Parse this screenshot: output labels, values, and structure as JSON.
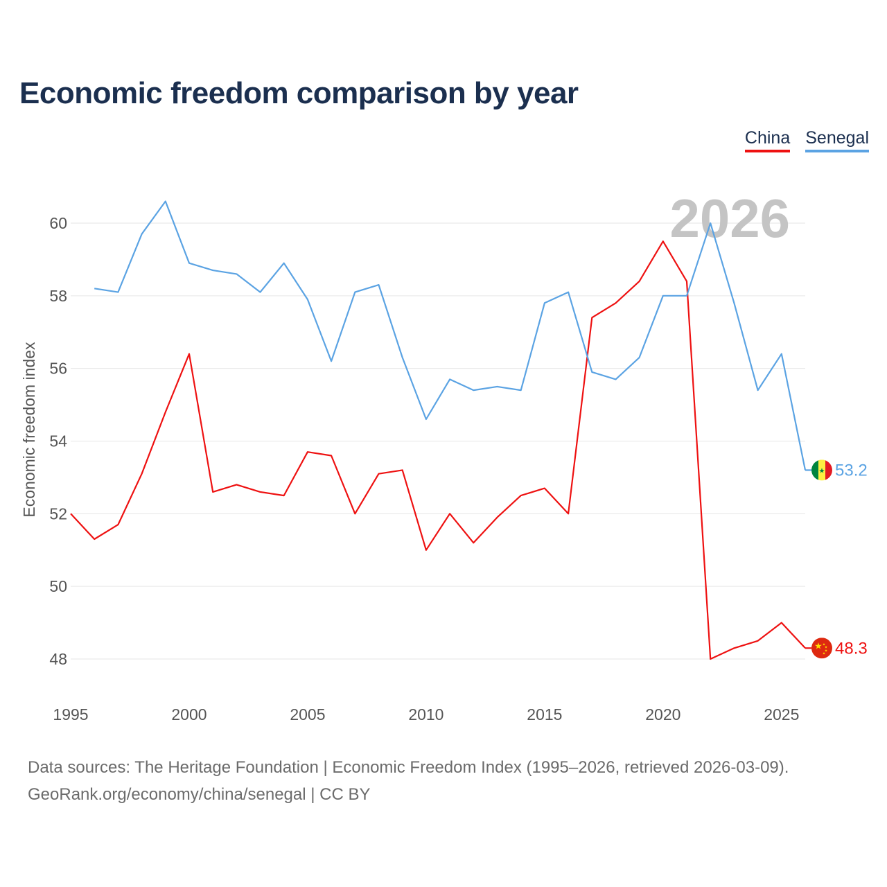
{
  "chart_data": {
    "type": "line",
    "title": "Economic freedom comparison by year",
    "ylabel": "Economic freedom index",
    "xlabel": "",
    "xlim": [
      1995,
      2026
    ],
    "ylim": [
      47,
      61.5
    ],
    "x_ticks": [
      1995,
      2000,
      2005,
      2010,
      2015,
      2020,
      2025
    ],
    "y_ticks": [
      48,
      50,
      52,
      54,
      56,
      58,
      60
    ],
    "year_highlight": "2026",
    "series": [
      {
        "name": "China",
        "color": "#ee1111",
        "end_value": "48.3",
        "flag": "china-flag",
        "points": [
          [
            1995,
            52.0
          ],
          [
            1996,
            51.3
          ],
          [
            1997,
            51.7
          ],
          [
            1998,
            53.1
          ],
          [
            1999,
            54.8
          ],
          [
            2000,
            56.4
          ],
          [
            2001,
            52.6
          ],
          [
            2002,
            52.8
          ],
          [
            2003,
            52.6
          ],
          [
            2004,
            52.5
          ],
          [
            2005,
            53.7
          ],
          [
            2006,
            53.6
          ],
          [
            2007,
            52.0
          ],
          [
            2008,
            53.1
          ],
          [
            2009,
            53.2
          ],
          [
            2010,
            51.0
          ],
          [
            2011,
            52.0
          ],
          [
            2012,
            51.2
          ],
          [
            2013,
            51.9
          ],
          [
            2014,
            52.5
          ],
          [
            2015,
            52.7
          ],
          [
            2016,
            52.0
          ],
          [
            2017,
            57.4
          ],
          [
            2018,
            57.8
          ],
          [
            2019,
            58.4
          ],
          [
            2020,
            59.5
          ],
          [
            2021,
            58.4
          ],
          [
            2022,
            48.0
          ],
          [
            2023,
            48.3
          ],
          [
            2024,
            48.5
          ],
          [
            2025,
            49.0
          ],
          [
            2026,
            48.3
          ]
        ]
      },
      {
        "name": "Senegal",
        "color": "#5ba3e3",
        "end_value": "53.2",
        "flag": "senegal-flag",
        "points": [
          [
            1996,
            58.2
          ],
          [
            1997,
            58.1
          ],
          [
            1998,
            59.7
          ],
          [
            1999,
            60.6
          ],
          [
            2000,
            58.9
          ],
          [
            2001,
            58.7
          ],
          [
            2002,
            58.6
          ],
          [
            2003,
            58.1
          ],
          [
            2004,
            58.9
          ],
          [
            2005,
            57.9
          ],
          [
            2006,
            56.2
          ],
          [
            2007,
            58.1
          ],
          [
            2008,
            58.3
          ],
          [
            2009,
            56.3
          ],
          [
            2010,
            54.6
          ],
          [
            2011,
            55.7
          ],
          [
            2012,
            55.4
          ],
          [
            2013,
            55.5
          ],
          [
            2014,
            55.4
          ],
          [
            2015,
            57.8
          ],
          [
            2016,
            58.1
          ],
          [
            2017,
            55.9
          ],
          [
            2018,
            55.7
          ],
          [
            2019,
            56.3
          ],
          [
            2020,
            58.0
          ],
          [
            2021,
            58.0
          ],
          [
            2022,
            60.0
          ],
          [
            2023,
            57.8
          ],
          [
            2024,
            55.4
          ],
          [
            2025,
            56.4
          ],
          [
            2026,
            53.2
          ]
        ]
      }
    ]
  },
  "footer": {
    "line1": "Data sources: The Heritage Foundation | Economic Freedom Index (1995–2026, retrieved 2026-03-09).",
    "line2": "GeoRank.org/economy/china/senegal | CC BY"
  }
}
